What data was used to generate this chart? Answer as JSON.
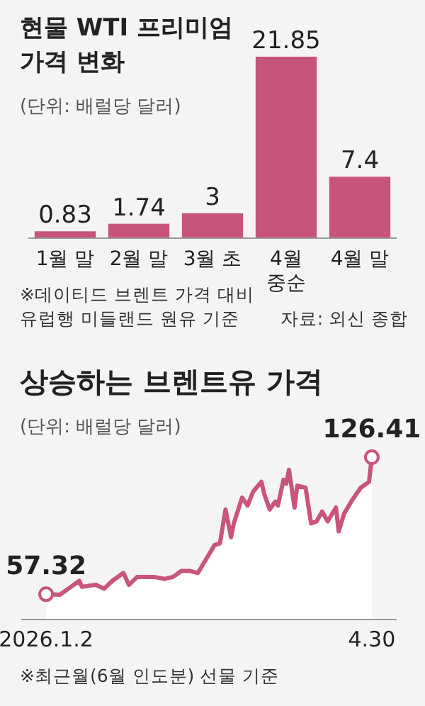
{
  "chart_data": [
    {
      "type": "bar",
      "title": "현물 WTI 프리미엄\n가격 변화",
      "subtitle": "(단위: 배럴당 달러)",
      "categories": [
        "1월 말",
        "2월 말",
        "3월 초",
        "4월\n중순",
        "4월 말"
      ],
      "values": [
        0.83,
        1.74,
        3,
        21.85,
        7.4
      ],
      "color": "#c9547a",
      "data_labels": true,
      "annotations": [
        "※데이티드 브렌트 가격 대비\n유럽행 미들랜드 원유 기준",
        "자료: 외신 종합"
      ]
    },
    {
      "type": "area",
      "title": "상승하는 브렌트유 가격",
      "subtitle": "(단위: 배럴당 달러)",
      "color": "#c9557c",
      "xlim": [
        "2025-12-24",
        "2026-05-09"
      ],
      "xticks": [
        {
          "value": "2026-01-02",
          "label": "2026.1.2"
        },
        {
          "value": "2026-04-30",
          "label": "4.30"
        }
      ],
      "x": [
        "2026-01-02",
        "2026-01-07",
        "2026-01-11",
        "2026-01-14",
        "2026-01-15",
        "2026-01-20",
        "2026-01-23",
        "2026-01-26",
        "2026-01-30",
        "2026-02-01",
        "2026-02-04",
        "2026-02-07",
        "2026-02-10",
        "2026-02-14",
        "2026-02-17",
        "2026-02-20",
        "2026-02-23",
        "2026-02-26",
        "2026-03-01",
        "2026-03-04",
        "2026-03-06",
        "2026-03-08",
        "2026-03-10",
        "2026-03-11",
        "2026-03-14",
        "2026-03-16",
        "2026-03-18",
        "2026-03-21",
        "2026-03-22",
        "2026-03-24",
        "2026-03-26",
        "2026-03-27",
        "2026-03-29",
        "2026-03-30",
        "2026-03-31",
        "2026-04-02",
        "2026-04-03",
        "2026-04-06",
        "2026-04-08",
        "2026-04-10",
        "2026-04-12",
        "2026-04-14",
        "2026-04-17",
        "2026-04-18",
        "2026-04-20",
        "2026-04-23",
        "2026-04-26",
        "2026-04-29",
        "2026-04-30"
      ],
      "values": [
        57.32,
        57,
        61,
        64,
        61,
        62,
        60,
        64,
        68,
        62,
        66,
        66,
        66,
        65,
        66,
        69,
        69,
        68,
        75,
        82,
        83,
        100,
        86,
        93,
        106,
        102,
        109,
        114,
        108,
        100,
        104,
        102,
        115,
        113,
        120,
        101,
        112,
        111,
        93,
        94,
        99,
        94,
        101,
        89,
        98,
        105,
        111,
        114,
        126.41
      ],
      "value_labels": [
        "57.32",
        null,
        null,
        null,
        null,
        null,
        null,
        null,
        null,
        null,
        null,
        null,
        null,
        null,
        null,
        null,
        null,
        null,
        null,
        null,
        null,
        null,
        null,
        null,
        null,
        null,
        null,
        null,
        null,
        null,
        null,
        null,
        null,
        null,
        null,
        null,
        null,
        null,
        null,
        null,
        null,
        null,
        null,
        null,
        null,
        null,
        null,
        null,
        "126.41"
      ],
      "annotations": [
        "※최근월(6월 인도분) 선물 기준"
      ]
    }
  ]
}
